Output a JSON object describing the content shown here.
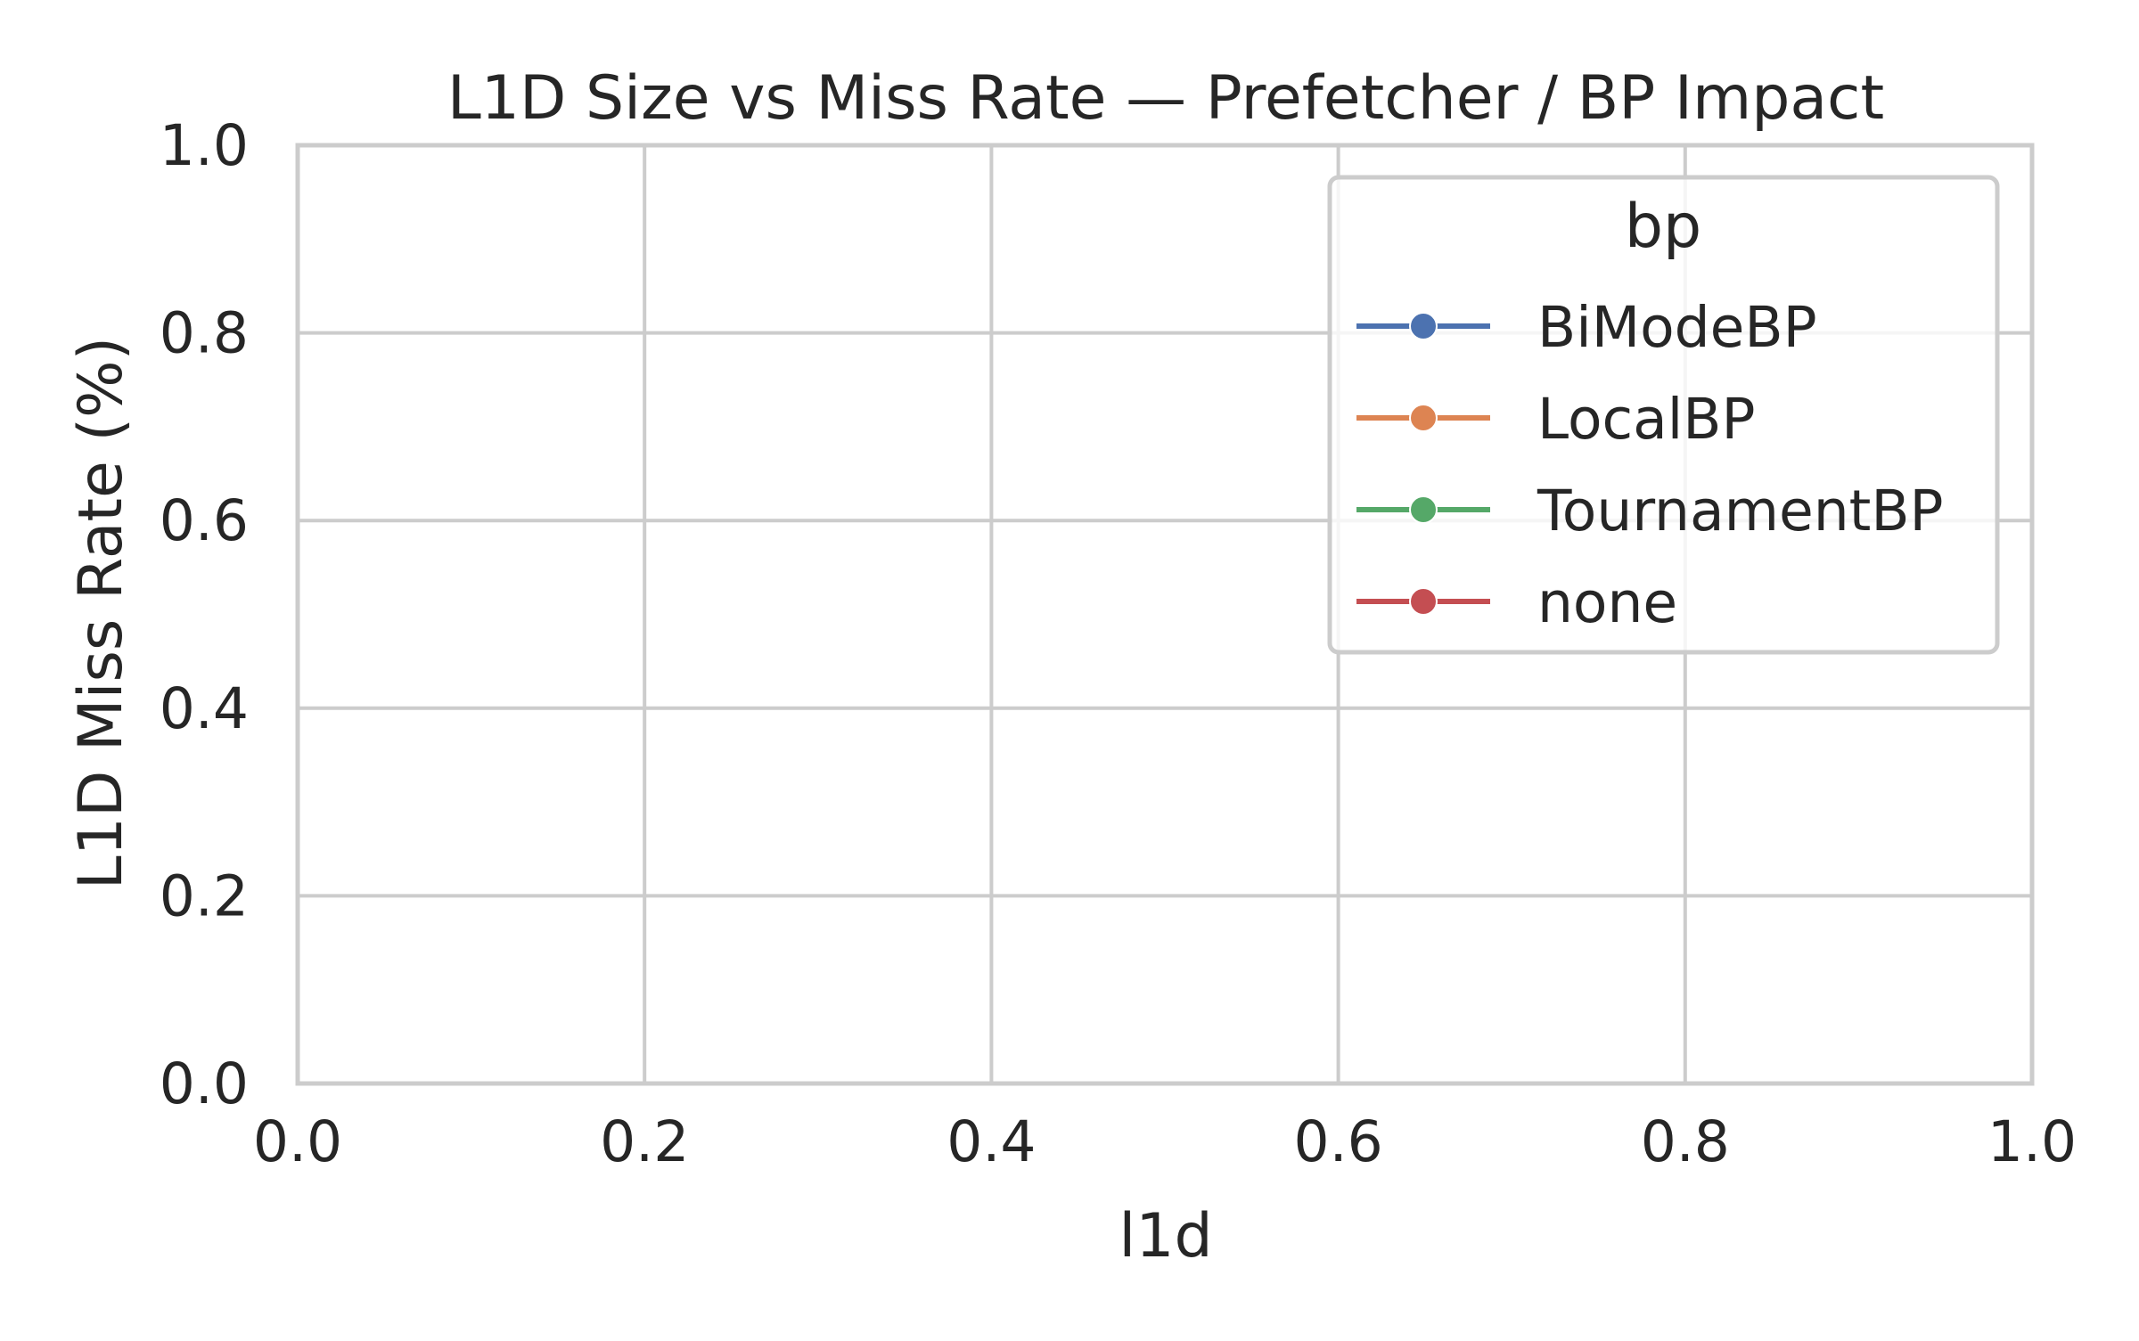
{
  "chart_data": {
    "type": "line",
    "title": "L1D Size vs Miss Rate — Prefetcher / BP Impact",
    "xlabel": "l1d",
    "ylabel": "L1D Miss Rate (%)",
    "xlim": [
      0.0,
      1.0
    ],
    "ylim": [
      0.0,
      1.0
    ],
    "xticks": [
      "0.0",
      "0.2",
      "0.4",
      "0.6",
      "0.8",
      "1.0"
    ],
    "yticks": [
      "0.0",
      "0.2",
      "0.4",
      "0.6",
      "0.8",
      "1.0"
    ],
    "grid": true,
    "legend": {
      "title": "bp",
      "placement": "top-right"
    },
    "series": [
      {
        "name": "BiModeBP",
        "color": "#4c72b0",
        "marker": "circle",
        "x": [],
        "y": []
      },
      {
        "name": "LocalBP",
        "color": "#dd8452",
        "marker": "circle",
        "x": [],
        "y": []
      },
      {
        "name": "TournamentBP",
        "color": "#55a868",
        "marker": "circle",
        "x": [],
        "y": []
      },
      {
        "name": "none",
        "color": "#c44e52",
        "marker": "circle",
        "x": [],
        "y": []
      }
    ]
  }
}
